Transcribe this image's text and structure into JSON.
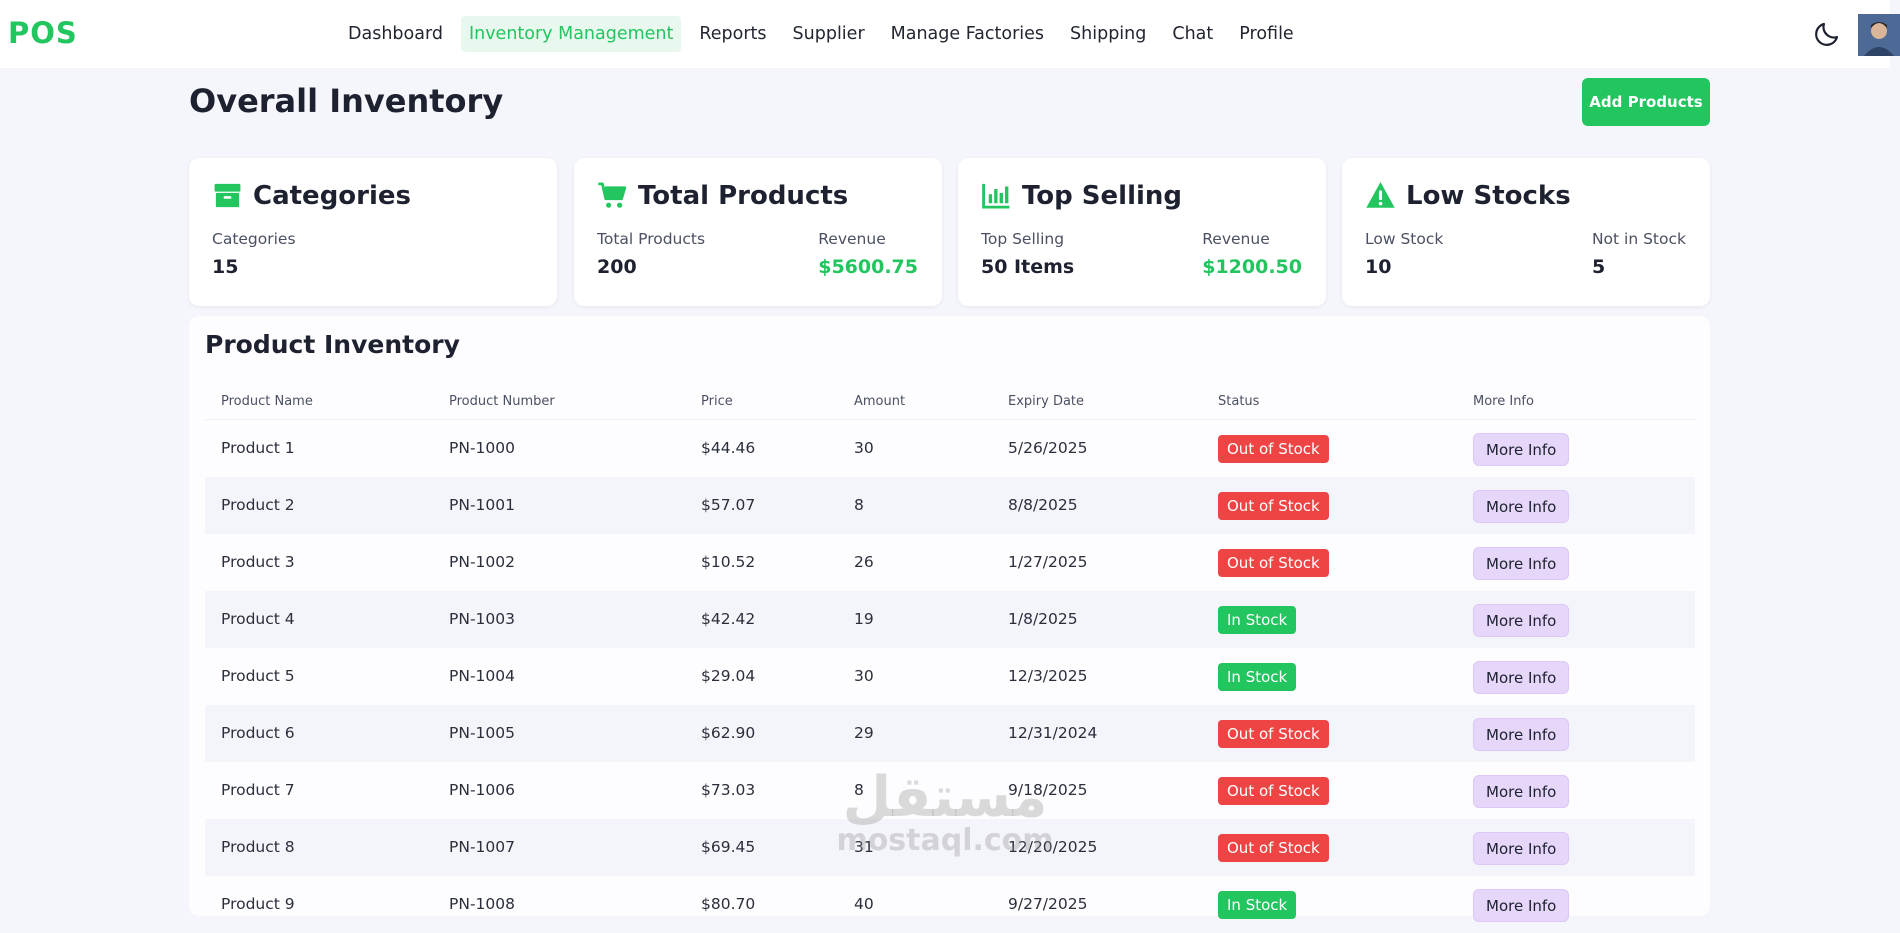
{
  "nav": {
    "logo": "POS",
    "menu": [
      {
        "label": "Dashboard",
        "active": false
      },
      {
        "label": "Inventory Management",
        "active": true
      },
      {
        "label": "Reports",
        "active": false
      },
      {
        "label": "Supplier",
        "active": false
      },
      {
        "label": "Manage Factories",
        "active": false
      },
      {
        "label": "Shipping",
        "active": false
      },
      {
        "label": "Chat",
        "active": false
      },
      {
        "label": "Profile",
        "active": false
      }
    ],
    "theme_icon": "moon-icon"
  },
  "header": {
    "title": "Overall Inventory",
    "add_button": "Add Products"
  },
  "cards": [
    {
      "icon": "box-icon",
      "title": "Categories",
      "left_label": "Categories",
      "left_value": "15",
      "right_label": "",
      "right_value": ""
    },
    {
      "icon": "cart-icon",
      "title": "Total Products",
      "left_label": "Total Products",
      "left_value": "200",
      "right_label": "Revenue",
      "right_value": "$5600.75"
    },
    {
      "icon": "bar-chart-icon",
      "title": "Top Selling",
      "left_label": "Top Selling",
      "left_value": "50 Items",
      "right_label": "Revenue",
      "right_value": "$1200.50"
    },
    {
      "icon": "warning-icon",
      "title": "Low Stocks",
      "left_label": "Low Stock",
      "left_value": "10",
      "right_label": "Not in Stock",
      "right_value": "5"
    }
  ],
  "table": {
    "title": "Product Inventory",
    "columns": [
      "Product Name",
      "Product Number",
      "Price",
      "Amount",
      "Expiry Date",
      "Status",
      "More Info"
    ],
    "rows": [
      {
        "name": "Product 1",
        "number": "PN-1000",
        "price": "$44.46",
        "amount": "30",
        "expiry": "5/26/2025",
        "status": "Out of Stock",
        "in_stock": false,
        "action": "More Info"
      },
      {
        "name": "Product 2",
        "number": "PN-1001",
        "price": "$57.07",
        "amount": "8",
        "expiry": "8/8/2025",
        "status": "Out of Stock",
        "in_stock": false,
        "action": "More Info"
      },
      {
        "name": "Product 3",
        "number": "PN-1002",
        "price": "$10.52",
        "amount": "26",
        "expiry": "1/27/2025",
        "status": "Out of Stock",
        "in_stock": false,
        "action": "More Info"
      },
      {
        "name": "Product 4",
        "number": "PN-1003",
        "price": "$42.42",
        "amount": "19",
        "expiry": "1/8/2025",
        "status": "In Stock",
        "in_stock": true,
        "action": "More Info"
      },
      {
        "name": "Product 5",
        "number": "PN-1004",
        "price": "$29.04",
        "amount": "30",
        "expiry": "12/3/2025",
        "status": "In Stock",
        "in_stock": true,
        "action": "More Info"
      },
      {
        "name": "Product 6",
        "number": "PN-1005",
        "price": "$62.90",
        "amount": "29",
        "expiry": "12/31/2024",
        "status": "Out of Stock",
        "in_stock": false,
        "action": "More Info"
      },
      {
        "name": "Product 7",
        "number": "PN-1006",
        "price": "$73.03",
        "amount": "8",
        "expiry": "9/18/2025",
        "status": "Out of Stock",
        "in_stock": false,
        "action": "More Info"
      },
      {
        "name": "Product 8",
        "number": "PN-1007",
        "price": "$69.45",
        "amount": "31",
        "expiry": "12/20/2025",
        "status": "Out of Stock",
        "in_stock": false,
        "action": "More Info"
      },
      {
        "name": "Product 9",
        "number": "PN-1008",
        "price": "$80.70",
        "amount": "40",
        "expiry": "9/27/2025",
        "status": "In Stock",
        "in_stock": true,
        "action": "More Info"
      }
    ]
  },
  "watermark": {
    "arabic": "مستقل",
    "latin": "mostaql.com"
  },
  "colors": {
    "accent": "#22c55e",
    "danger": "#ef4444",
    "more_info_bg": "#e6d6fa",
    "page_bg": "#f5f6fb"
  }
}
